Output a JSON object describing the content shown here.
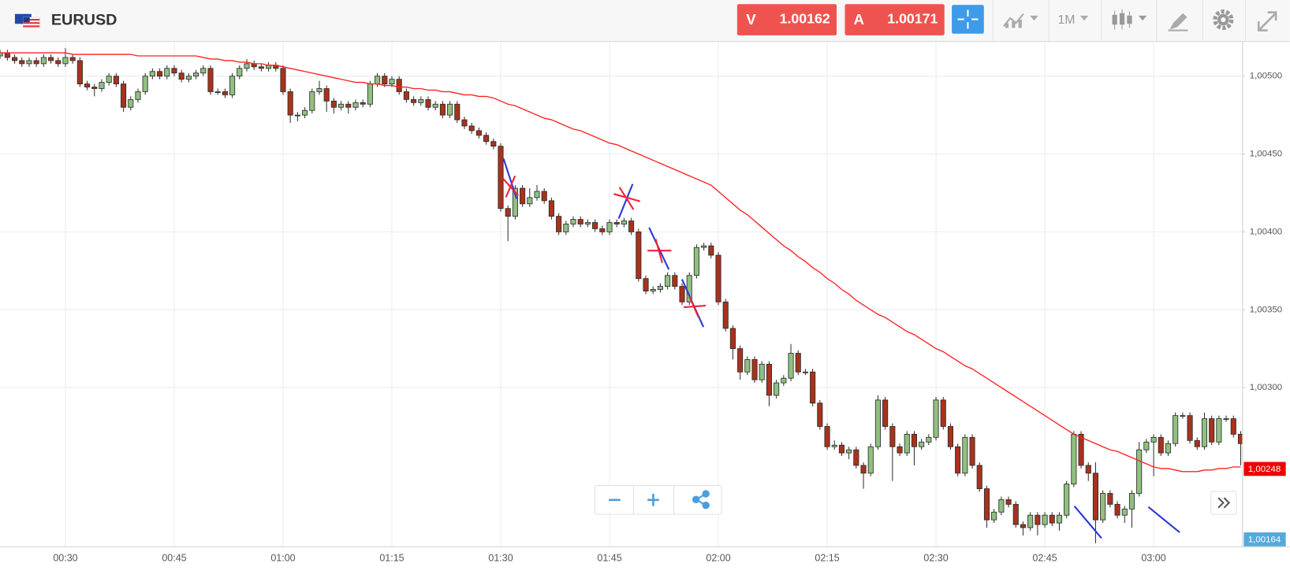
{
  "header": {
    "symbol": "EURUSD",
    "sell": {
      "letter": "V",
      "price": "1.00162"
    },
    "buy": {
      "letter": "A",
      "price": "1.00171"
    },
    "timeframe": "1M"
  },
  "chart_data": {
    "type": "candlestick",
    "categories": [
      null,
      null,
      null,
      null,
      null,
      null,
      null,
      null,
      null,
      "00:30",
      null,
      null,
      null,
      null,
      null,
      null,
      null,
      null,
      null,
      null,
      null,
      null,
      null,
      null,
      "00:45",
      null,
      null,
      null,
      null,
      null,
      null,
      null,
      null,
      null,
      null,
      null,
      null,
      null,
      null,
      "01:00",
      null,
      null,
      null,
      null,
      null,
      null,
      null,
      null,
      null,
      null,
      null,
      null,
      null,
      null,
      "01:15",
      null,
      null,
      null,
      null,
      null,
      null,
      null,
      null,
      null,
      null,
      null,
      null,
      null,
      null,
      "01:30",
      null,
      null,
      null,
      null,
      null,
      null,
      null,
      null,
      null,
      null,
      null,
      null,
      null,
      null,
      "01:45",
      null,
      null,
      null,
      null,
      null,
      null,
      null,
      null,
      null,
      null,
      null,
      null,
      null,
      null,
      "02:00",
      null,
      null,
      null,
      null,
      null,
      null,
      null,
      null,
      null,
      null,
      null,
      null,
      null,
      null,
      "02:15",
      null,
      null,
      null,
      null,
      null,
      null,
      null,
      null,
      null,
      null,
      null,
      null,
      null,
      null,
      "02:30",
      null,
      null,
      null,
      null,
      null,
      null,
      null,
      null,
      null,
      null,
      null,
      null,
      null,
      null,
      "02:45",
      null,
      null,
      null,
      null,
      null,
      null,
      null,
      null,
      null,
      null,
      null,
      null,
      null,
      null,
      "03:00",
      null,
      null,
      null,
      null,
      null,
      null,
      null,
      null,
      null,
      null,
      null,
      null
    ],
    "open": [
      1.00513,
      1.00515,
      1.00512,
      1.0051,
      1.00508,
      1.0051,
      1.00508,
      1.00512,
      1.0051,
      1.00508,
      1.00512,
      1.0051,
      1.00495,
      1.00493,
      1.00492,
      1.00496,
      1.005,
      1.00495,
      1.0048,
      1.00485,
      1.0049,
      1.005,
      1.00503,
      1.005,
      1.00505,
      1.00502,
      1.00498,
      1.005,
      1.00502,
      1.00505,
      1.0049,
      1.0049,
      1.00488,
      1.005,
      1.00505,
      1.00508,
      1.00506,
      1.00505,
      1.00507,
      1.00505,
      1.0049,
      1.00475,
      1.00475,
      1.00478,
      1.0049,
      1.00492,
      1.00484,
      1.0048,
      1.00482,
      1.0048,
      1.00483,
      1.00482,
      1.00495,
      1.005,
      1.00495,
      1.00498,
      1.0049,
      1.00485,
      1.00483,
      1.00485,
      1.0048,
      1.00482,
      1.00475,
      1.00482,
      1.00472,
      1.00468,
      1.00465,
      1.00462,
      1.00458,
      1.00455,
      1.00415,
      1.0041,
      1.00428,
      1.00418,
      1.00422,
      1.00426,
      1.0042,
      1.0041,
      1.004,
      1.00405,
      1.00408,
      1.00405,
      1.00406,
      1.00402,
      1.004,
      1.00406,
      1.00405,
      1.00407,
      1.004,
      1.0037,
      1.00362,
      1.00363,
      1.00365,
      1.00372,
      1.00365,
      1.00355,
      1.00372,
      1.0039,
      1.00391,
      1.00385,
      1.00355,
      1.00338,
      1.00325,
      1.0031,
      1.00318,
      1.00305,
      1.00315,
      1.00295,
      1.00303,
      1.00306,
      1.00322,
      1.0031,
      1.0031,
      1.0029,
      1.00275,
      1.00262,
      1.00263,
      1.00258,
      1.0026,
      1.0025,
      1.00245,
      1.00262,
      1.00292,
      1.00275,
      1.00262,
      1.00258,
      1.0027,
      1.00262,
      1.00265,
      1.00268,
      1.00292,
      1.00275,
      1.00262,
      1.00245,
      1.00268,
      1.0025,
      1.00235,
      1.00215,
      1.0022,
      1.00228,
      1.00225,
      1.00212,
      1.0021,
      1.00218,
      1.00212,
      1.00218,
      1.00213,
      1.00218,
      1.00238,
      1.0027,
      1.0025,
      1.00245,
      1.00215,
      1.00232,
      1.00225,
      1.00218,
      1.00222,
      1.00232,
      1.0026,
      1.00265,
      1.00268,
      1.00258,
      1.00264,
      1.00282,
      1.00282,
      1.00266,
      1.00262,
      1.0028,
      1.00265,
      1.0028,
      1.0028,
      1.0027
    ],
    "high": [
      1.00517,
      1.00517,
      1.00514,
      1.00512,
      1.00512,
      1.00512,
      1.00514,
      1.00514,
      1.00512,
      1.00518,
      1.00514,
      1.00512,
      1.00497,
      1.00495,
      1.00498,
      1.00502,
      1.00502,
      1.00497,
      1.00487,
      1.00492,
      1.00502,
      1.00505,
      1.00505,
      1.00507,
      1.00507,
      1.00504,
      1.00502,
      1.00504,
      1.00507,
      1.00507,
      1.00492,
      1.00492,
      1.00502,
      1.00507,
      1.00511,
      1.0051,
      1.00508,
      1.00509,
      1.00509,
      1.00507,
      1.00492,
      1.00477,
      1.0048,
      1.00492,
      1.00497,
      1.00494,
      1.00486,
      1.00484,
      1.00484,
      1.00485,
      1.00485,
      1.00497,
      1.00502,
      1.00502,
      1.005,
      1.005,
      1.00492,
      1.00487,
      1.00487,
      1.00487,
      1.00484,
      1.00484,
      1.00484,
      1.00484,
      1.00474,
      1.0047,
      1.00467,
      1.00464,
      1.0046,
      1.00457,
      1.00417,
      1.0043,
      1.0043,
      1.00428,
      1.0043,
      1.00428,
      1.00422,
      1.00412,
      1.00407,
      1.0041,
      1.0041,
      1.00408,
      1.00408,
      1.00404,
      1.00408,
      1.00408,
      1.00409,
      1.00409,
      1.00402,
      1.00372,
      1.00365,
      1.00367,
      1.00374,
      1.00374,
      1.00367,
      1.00374,
      1.00392,
      1.00393,
      1.00393,
      1.00387,
      1.00357,
      1.0034,
      1.00327,
      1.0032,
      1.0032,
      1.00317,
      1.00317,
      1.00305,
      1.00308,
      1.00328,
      1.00324,
      1.00312,
      1.00312,
      1.00292,
      1.00277,
      1.00266,
      1.00265,
      1.00262,
      1.00262,
      1.00252,
      1.00264,
      1.00295,
      1.00294,
      1.00277,
      1.00264,
      1.00272,
      1.00272,
      1.00267,
      1.0027,
      1.00294,
      1.00294,
      1.00277,
      1.00264,
      1.0027,
      1.0027,
      1.00252,
      1.00237,
      1.00222,
      1.0023,
      1.0023,
      1.00227,
      1.00214,
      1.0022,
      1.0022,
      1.0022,
      1.0022,
      1.0022,
      1.0024,
      1.00272,
      1.00272,
      1.00252,
      1.00252,
      1.00234,
      1.00234,
      1.00227,
      1.00224,
      1.00234,
      1.00265,
      1.00267,
      1.0027,
      1.0027,
      1.00266,
      1.00284,
      1.00284,
      1.00284,
      1.00268,
      1.00284,
      1.00282,
      1.00282,
      1.00282,
      1.00282,
      1.00272
    ],
    "low": [
      1.00511,
      1.0051,
      1.00508,
      1.00506,
      1.00506,
      1.00506,
      1.00506,
      1.00508,
      1.00506,
      1.00506,
      1.00508,
      1.00493,
      1.00491,
      1.00487,
      1.0049,
      1.00494,
      1.00493,
      1.00477,
      1.00478,
      1.00483,
      1.00488,
      1.00498,
      1.00498,
      1.00498,
      1.005,
      1.00496,
      1.00496,
      1.00498,
      1.005,
      1.00488,
      1.00488,
      1.00486,
      1.00486,
      1.00498,
      1.00503,
      1.00504,
      1.00503,
      1.00503,
      1.00503,
      1.00488,
      1.0047,
      1.00471,
      1.00473,
      1.00476,
      1.00488,
      1.00477,
      1.00476,
      1.00478,
      1.00476,
      1.00478,
      1.0048,
      1.0048,
      1.00493,
      1.00493,
      1.00493,
      1.00488,
      1.00483,
      1.00481,
      1.00481,
      1.00478,
      1.00478,
      1.00473,
      1.00473,
      1.0047,
      1.00466,
      1.00463,
      1.0046,
      1.00456,
      1.00453,
      1.00413,
      1.00394,
      1.00408,
      1.00416,
      1.00416,
      1.0042,
      1.00418,
      1.00408,
      1.00398,
      1.00398,
      1.00403,
      1.00403,
      1.00403,
      1.004,
      1.00398,
      1.00398,
      1.00403,
      1.00403,
      1.00398,
      1.00368,
      1.0036,
      1.0036,
      1.00361,
      1.00363,
      1.00363,
      1.00353,
      1.00353,
      1.0037,
      1.00388,
      1.00383,
      1.00353,
      1.00336,
      1.00318,
      1.00305,
      1.00308,
      1.00303,
      1.00303,
      1.00288,
      1.00293,
      1.00301,
      1.00304,
      1.00308,
      1.00308,
      1.00288,
      1.00273,
      1.0026,
      1.0026,
      1.00256,
      1.00254,
      1.00248,
      1.00235,
      1.00243,
      1.0026,
      1.00273,
      1.0024,
      1.00256,
      1.00256,
      1.0025,
      1.0026,
      1.00263,
      1.00266,
      1.00273,
      1.0026,
      1.00243,
      1.00243,
      1.00248,
      1.00233,
      1.0021,
      1.00213,
      1.00218,
      1.00223,
      1.0021,
      1.00205,
      1.00208,
      1.00205,
      1.0021,
      1.00211,
      1.00208,
      1.00216,
      1.00236,
      1.00248,
      1.0024,
      1.002,
      1.00213,
      1.00223,
      1.00216,
      1.00213,
      1.0021,
      1.0023,
      1.00258,
      1.00243,
      1.00256,
      1.00256,
      1.00262,
      1.0028,
      1.00264,
      1.0026,
      1.0026,
      1.00263,
      1.00263,
      1.00278,
      1.00268,
      1.0025
    ],
    "close": [
      1.00515,
      1.00512,
      1.0051,
      1.00508,
      1.0051,
      1.00508,
      1.00512,
      1.0051,
      1.00508,
      1.00512,
      1.0051,
      1.00495,
      1.00493,
      1.00492,
      1.00496,
      1.005,
      1.00495,
      1.0048,
      1.00485,
      1.0049,
      1.005,
      1.00503,
      1.005,
      1.00505,
      1.00502,
      1.00498,
      1.005,
      1.00502,
      1.00505,
      1.0049,
      1.0049,
      1.00488,
      1.005,
      1.00505,
      1.00508,
      1.00506,
      1.00505,
      1.00507,
      1.00505,
      1.0049,
      1.00475,
      1.00475,
      1.00478,
      1.0049,
      1.00492,
      1.00484,
      1.0048,
      1.00482,
      1.0048,
      1.00483,
      1.00482,
      1.00495,
      1.005,
      1.00495,
      1.00498,
      1.0049,
      1.00485,
      1.00483,
      1.00485,
      1.0048,
      1.00482,
      1.00475,
      1.00482,
      1.00472,
      1.00468,
      1.00465,
      1.00462,
      1.00458,
      1.00455,
      1.00415,
      1.0041,
      1.00428,
      1.00418,
      1.00422,
      1.00426,
      1.0042,
      1.0041,
      1.004,
      1.00405,
      1.00408,
      1.00405,
      1.00406,
      1.00402,
      1.004,
      1.00406,
      1.00405,
      1.00407,
      1.004,
      1.0037,
      1.00362,
      1.00363,
      1.00365,
      1.00372,
      1.00365,
      1.00355,
      1.00372,
      1.0039,
      1.00391,
      1.00385,
      1.00355,
      1.00338,
      1.00325,
      1.0031,
      1.00318,
      1.00305,
      1.00315,
      1.00295,
      1.00303,
      1.00306,
      1.00322,
      1.0031,
      1.0031,
      1.0029,
      1.00275,
      1.00262,
      1.00263,
      1.00258,
      1.0026,
      1.0025,
      1.00245,
      1.00262,
      1.00292,
      1.00275,
      1.00262,
      1.00258,
      1.0027,
      1.00262,
      1.00265,
      1.00268,
      1.00292,
      1.00275,
      1.00262,
      1.00245,
      1.00268,
      1.0025,
      1.00235,
      1.00215,
      1.0022,
      1.00228,
      1.00225,
      1.00212,
      1.0021,
      1.00218,
      1.00212,
      1.00218,
      1.00213,
      1.00218,
      1.00238,
      1.0027,
      1.0025,
      1.00245,
      1.00215,
      1.00232,
      1.00225,
      1.00218,
      1.00222,
      1.00232,
      1.0026,
      1.00265,
      1.00268,
      1.00258,
      1.00264,
      1.00282,
      1.00282,
      1.00266,
      1.00262,
      1.0028,
      1.00265,
      1.0028,
      1.0028,
      1.0027,
      1.00264
    ],
    "up_color": "#90c080",
    "down_color": "#a8321c",
    "moving_average": {
      "color": "#ff2020",
      "values": [
        1.00515,
        1.00515,
        1.00515,
        1.00515,
        1.00515,
        1.00515,
        1.00515,
        1.00515,
        1.00515,
        1.00515,
        1.00514,
        1.00514,
        1.00514,
        1.00514,
        1.00514,
        1.00514,
        1.00514,
        1.00514,
        1.00514,
        1.00513,
        1.00513,
        1.00513,
        1.00513,
        1.00513,
        1.00513,
        1.00513,
        1.00513,
        1.00513,
        1.00512,
        1.00511,
        1.00511,
        1.0051,
        1.0051,
        1.00509,
        1.00509,
        1.00508,
        1.00508,
        1.00507,
        1.00507,
        1.00506,
        1.00505,
        1.00504,
        1.00503,
        1.00502,
        1.00501,
        1.005,
        1.00499,
        1.00498,
        1.00497,
        1.00496,
        1.00496,
        1.00495,
        1.00495,
        1.00494,
        1.00494,
        1.00493,
        1.00493,
        1.00492,
        1.00492,
        1.00491,
        1.00491,
        1.0049,
        1.0049,
        1.00489,
        1.00488,
        1.00488,
        1.00487,
        1.00487,
        1.00486,
        1.00484,
        1.00482,
        1.00481,
        1.00479,
        1.00477,
        1.00475,
        1.00473,
        1.00472,
        1.0047,
        1.00468,
        1.00466,
        1.00465,
        1.00463,
        1.00461,
        1.00459,
        1.00457,
        1.00456,
        1.00454,
        1.00452,
        1.0045,
        1.00448,
        1.00446,
        1.00444,
        1.00442,
        1.0044,
        1.00438,
        1.00436,
        1.00434,
        1.00432,
        1.0043,
        1.00426,
        1.00422,
        1.00418,
        1.00414,
        1.00411,
        1.00407,
        1.00403,
        1.00399,
        1.00395,
        1.00391,
        1.00388,
        1.00384,
        1.00381,
        1.00377,
        1.00374,
        1.0037,
        1.00367,
        1.00363,
        1.0036,
        1.00356,
        1.00353,
        1.0035,
        1.00347,
        1.00345,
        1.00342,
        1.00339,
        1.00336,
        1.00334,
        1.00331,
        1.00328,
        1.00325,
        1.00323,
        1.0032,
        1.00317,
        1.00314,
        1.00312,
        1.00309,
        1.00306,
        1.00303,
        1.003,
        1.00297,
        1.00294,
        1.00291,
        1.00288,
        1.00285,
        1.00282,
        1.00279,
        1.00276,
        1.00273,
        1.0027,
        1.00268,
        1.00266,
        1.00264,
        1.00262,
        1.0026,
        1.00259,
        1.00257,
        1.00255,
        1.00253,
        1.00251,
        1.00249,
        1.00248,
        1.00248,
        1.00247,
        1.00246,
        1.00246,
        1.00246,
        1.00247,
        1.00247,
        1.00248,
        1.00248,
        1.00249,
        1.00249
      ]
    },
    "ylim": [
      1.00198,
      1.00522
    ],
    "yticks": [
      {
        "value": 1.003,
        "label": "1,00300"
      },
      {
        "value": 1.0035,
        "label": "1,00350"
      },
      {
        "value": 1.004,
        "label": "1,00400"
      },
      {
        "value": 1.0045,
        "label": "1,00450"
      },
      {
        "value": 1.005,
        "label": "1,00500"
      }
    ],
    "grid": true,
    "current_price": {
      "value": 1.00248,
      "label": "1,00248"
    },
    "low_tag": "1,00164"
  }
}
